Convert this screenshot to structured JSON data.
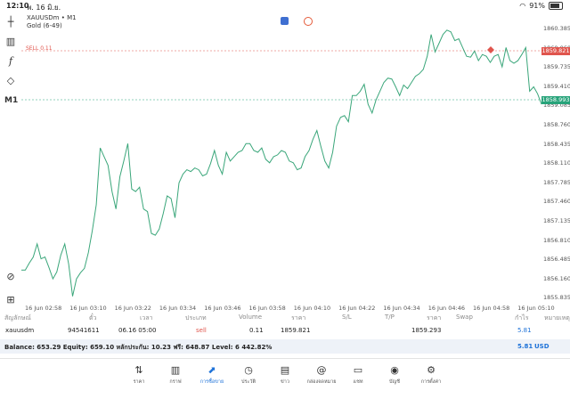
{
  "status_bar": {
    "time": "12:10",
    "date": "พ. 16 มิ.ย.",
    "battery": "91%"
  },
  "chart": {
    "symbol_line": "XAUUSDm • M1",
    "name_line": "Gold (6-49)",
    "sell_label": "SELL 0.11",
    "sell_price": "1859.821",
    "current_price": "1858.993",
    "colors": {
      "line": "#3aa67a",
      "sell": "#e0554d",
      "current": "#27a37a"
    }
  },
  "price_axis": [
    "1860.385",
    "1860.060",
    "1859.735",
    "1859.410",
    "1859.085",
    "1858.760",
    "1858.435",
    "1858.110",
    "1857.785",
    "1857.460",
    "1857.135",
    "1856.810",
    "1856.485",
    "1856.160",
    "1855.835"
  ],
  "time_axis": [
    "16 Jun 02:58",
    "16 Jun 03:10",
    "16 Jun 03:22",
    "16 Jun 03:34",
    "16 Jun 03:46",
    "16 Jun 03:58",
    "16 Jun 04:10",
    "16 Jun 04:22",
    "16 Jun 04:34",
    "16 Jun 04:46",
    "16 Jun 04:58",
    "16 Jun 05:10"
  ],
  "table": {
    "headers": [
      "สัญลักษณ์",
      "ตั๋ว",
      "เวลา",
      "ประเภท",
      "Volume",
      "ราคา",
      "S/L",
      "T/P",
      "ราคา",
      "Swap",
      "กำไร",
      "หมายเหตุ"
    ],
    "row": {
      "symbol": "xauusdm",
      "ticket": "94541611",
      "time": "06.16 05:00",
      "type": "sell",
      "volume": "0.11",
      "open_price": "1859.821",
      "current_price": "1859.293",
      "profit": "5.81"
    }
  },
  "balance": {
    "text": "Balance: 653.29 Equity: 659.10 หลักประกัน: 10.23 ฟรี: 648.87 Level: 6 442.82%",
    "profit": "5.81",
    "currency": "USD"
  },
  "nav": [
    "ราคา",
    "กราฟ",
    "การซื้อขาย",
    "ประวัติ",
    "ข่าว",
    "กล่องจดหมาย",
    "แชท",
    "บัญชี",
    "การตั้งค่า"
  ]
}
